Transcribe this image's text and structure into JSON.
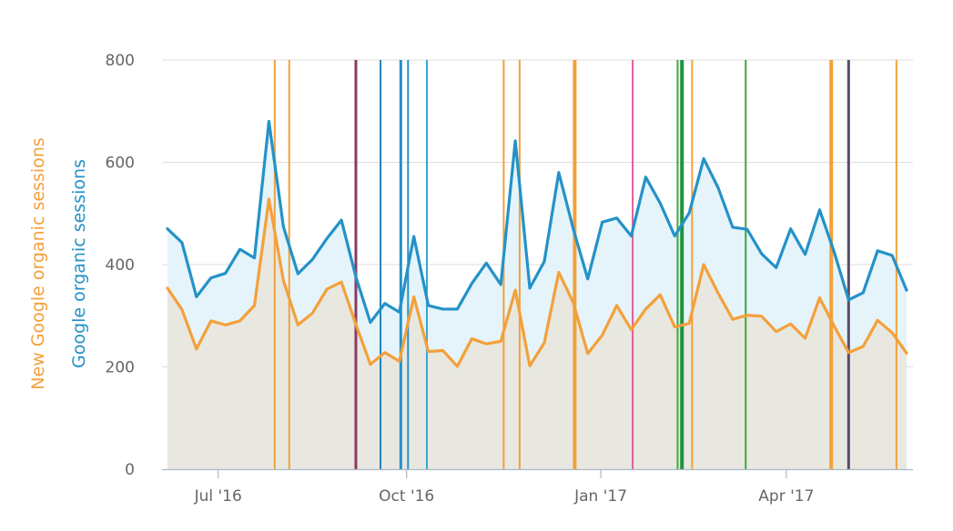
{
  "chart_data": {
    "type": "area",
    "title": "",
    "ylabel_primary": "Google organic sessions",
    "ylabel_secondary": "New Google organic sessions",
    "ylim": [
      0,
      800
    ],
    "yticks": [
      0,
      200,
      400,
      600,
      800
    ],
    "xticks": [
      {
        "label": "Jul '16",
        "index": 3.5
      },
      {
        "label": "Oct '16",
        "index": 16.5
      },
      {
        "label": "Jan '17",
        "index": 29.9
      },
      {
        "label": "Apr '17",
        "index": 42.7
      }
    ],
    "series": [
      {
        "name": "Google organic sessions",
        "color": "#2492c8",
        "fill": "#e5f4fa",
        "values": [
          470,
          443,
          337,
          374,
          383,
          430,
          413,
          680,
          474,
          382,
          410,
          451,
          487,
          376,
          287,
          324,
          307,
          455,
          320,
          313,
          313,
          363,
          403,
          361,
          642,
          354,
          406,
          580,
          470,
          372,
          483,
          491,
          456,
          571,
          520,
          456,
          501,
          607,
          550,
          473,
          469,
          421,
          394,
          470,
          420,
          507,
          425,
          331,
          345,
          427,
          418,
          350
        ]
      },
      {
        "name": "New Google organic sessions",
        "color": "#f4a03a",
        "fill": "#e8e8e1",
        "values": [
          354,
          312,
          235,
          290,
          282,
          290,
          320,
          528,
          369,
          282,
          305,
          352,
          366,
          283,
          205,
          228,
          211,
          337,
          230,
          232,
          201,
          255,
          245,
          250,
          350,
          202,
          247,
          385,
          326,
          226,
          262,
          320,
          273,
          313,
          341,
          278,
          285,
          400,
          344,
          293,
          301,
          299,
          269,
          284,
          256,
          335,
          280,
          228,
          240,
          291,
          267,
          227
        ]
      }
    ],
    "annotations": [
      {
        "index": 7.4,
        "color": "#f4a03a",
        "weight": 2
      },
      {
        "index": 8.4,
        "color": "#f4a03a",
        "weight": 2
      },
      {
        "index": 13.0,
        "color": "#8b3a62",
        "weight": 3
      },
      {
        "index": 14.7,
        "color": "#2480b8",
        "weight": 2
      },
      {
        "index": 16.1,
        "color": "#2492c8",
        "weight": 3
      },
      {
        "index": 16.6,
        "color": "#2492c8",
        "weight": 2
      },
      {
        "index": 17.9,
        "color": "#35a8d0",
        "weight": 2
      },
      {
        "index": 23.2,
        "color": "#f4a03a",
        "weight": 2
      },
      {
        "index": 24.3,
        "color": "#f4a03a",
        "weight": 2
      },
      {
        "index": 28.1,
        "color": "#f4a03a",
        "weight": 4
      },
      {
        "index": 32.1,
        "color": "#e45a9c",
        "weight": 2
      },
      {
        "index": 35.2,
        "color": "#3ea63e",
        "weight": 2
      },
      {
        "index": 35.5,
        "color": "#1f9440",
        "weight": 4
      },
      {
        "index": 36.2,
        "color": "#f4a03a",
        "weight": 2
      },
      {
        "index": 39.9,
        "color": "#3ea63e",
        "weight": 2
      },
      {
        "index": 45.8,
        "color": "#f4a03a",
        "weight": 4
      },
      {
        "index": 47.0,
        "color": "#5a4a6a",
        "weight": 3
      },
      {
        "index": 50.3,
        "color": "#f4a03a",
        "weight": 2
      }
    ],
    "grid": true
  }
}
